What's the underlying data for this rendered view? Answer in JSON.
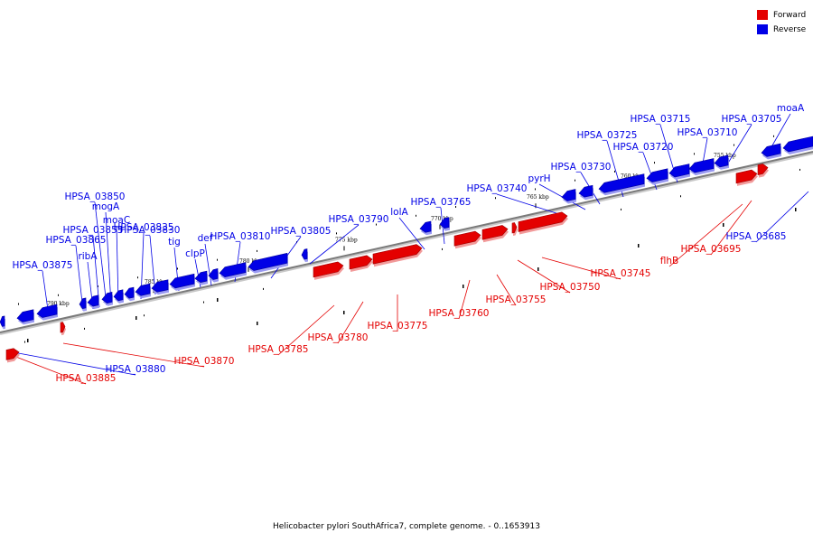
{
  "legend": {
    "forward": {
      "label": "Forward",
      "color": "#e40000"
    },
    "reverse": {
      "label": "Reverse",
      "color": "#0000e6"
    }
  },
  "caption": "Helicobacter pylori SouthAfrica7, complete genome. - 0..1653913",
  "axis": {
    "ticks": [
      "790 kbp",
      "785 kbp",
      "780 kbp",
      "775 kbp",
      "770 kbp",
      "765 kbp",
      "760 kbp",
      "755 kbp"
    ]
  },
  "reverse_genes": [
    {
      "label": "HPSA_03875"
    },
    {
      "label": "HPSA_03865"
    },
    {
      "label": "ribA"
    },
    {
      "label": "HPSA_03855"
    },
    {
      "label": "HPSA_03850"
    },
    {
      "label": "mogA"
    },
    {
      "label": "moaC"
    },
    {
      "label": "HPSA_03835"
    },
    {
      "label": "HPSA_03830"
    },
    {
      "label": "tig"
    },
    {
      "label": "clpP"
    },
    {
      "label": "def"
    },
    {
      "label": "HPSA_03810"
    },
    {
      "label": "HPSA_03805"
    },
    {
      "label": "HPSA_03790"
    },
    {
      "label": "lolA"
    },
    {
      "label": "HPSA_03765"
    },
    {
      "label": "HPSA_03740"
    },
    {
      "label": "pyrH"
    },
    {
      "label": "HPSA_03730"
    },
    {
      "label": "HPSA_03725"
    },
    {
      "label": "HPSA_03720"
    },
    {
      "label": "HPSA_03715"
    },
    {
      "label": "HPSA_03710"
    },
    {
      "label": "HPSA_03705"
    },
    {
      "label": "moaA"
    },
    {
      "label": "HPSA_03880"
    },
    {
      "label": "HPSA_03685"
    }
  ],
  "forward_genes": [
    {
      "label": "HPSA_03885"
    },
    {
      "label": "HPSA_03870"
    },
    {
      "label": "HPSA_03785"
    },
    {
      "label": "HPSA_03780"
    },
    {
      "label": "HPSA_03775"
    },
    {
      "label": "HPSA_03760"
    },
    {
      "label": "HPSA_03755"
    },
    {
      "label": "HPSA_03750"
    },
    {
      "label": "HPSA_03745"
    },
    {
      "label": "flhB"
    },
    {
      "label": "HPSA_03695"
    }
  ]
}
